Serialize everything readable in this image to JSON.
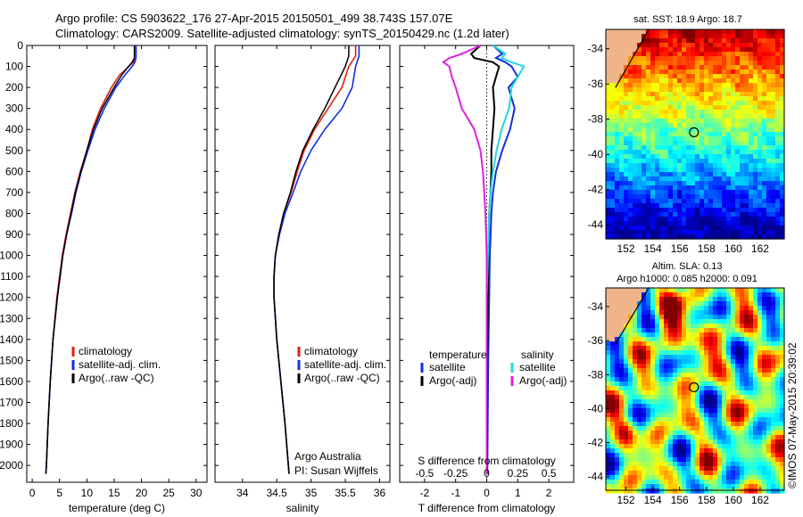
{
  "header": {
    "line1": "Argo profile: CS 5903622_176 27-Apr-2015 20150501_499 38.743S 157.07E",
    "line2": "Climatology: CARS2009. Satellite-adjusted climatology: synTS_20150429.nc (1.2d later)"
  },
  "colors": {
    "climatology": "#e02010",
    "satellite": "#1030e0",
    "argo": "#000000",
    "sal_satellite": "#20d8d8",
    "sal_argo": "#e020e0"
  },
  "chart_data": [
    {
      "type": "line",
      "id": "temperature",
      "xlabel": "temperature (deg C)",
      "ylabel": "",
      "xlim": [
        -1,
        32
      ],
      "ylim": [
        2080,
        0
      ],
      "xticks": [
        "0",
        "5",
        "10",
        "15",
        "20",
        "25",
        "30"
      ],
      "yticks": [
        "0",
        "100",
        "200",
        "300",
        "400",
        "500",
        "600",
        "700",
        "800",
        "900",
        "1000",
        "1100",
        "1200",
        "1300",
        "1400",
        "1500",
        "1600",
        "1700",
        "1800",
        "1900",
        "2000"
      ],
      "legend": [
        "climatology",
        "satellite-adj. clim.",
        "Argo(..raw -QC)"
      ],
      "series": [
        {
          "name": "climatology",
          "depth": [
            0,
            60,
            80,
            100,
            140,
            200,
            300,
            400,
            500,
            600,
            700,
            800,
            900,
            1000,
            1200,
            1400,
            1600,
            1800,
            2000,
            2040
          ],
          "values": [
            19,
            19,
            18.5,
            17.7,
            16,
            14.5,
            12.5,
            11,
            10,
            8.8,
            7.8,
            7,
            6.2,
            5.5,
            4.5,
            3.8,
            3.3,
            2.9,
            2.6,
            2.5
          ]
        },
        {
          "name": "satellite-adj. clim.",
          "depth": [
            0,
            60,
            80,
            100,
            140,
            200,
            300,
            400,
            500,
            600,
            700,
            800,
            900,
            1000,
            1200,
            1400,
            1600,
            1800,
            2000,
            2040
          ],
          "values": [
            19,
            19,
            18.8,
            18.3,
            17,
            15.3,
            13.2,
            11.5,
            10.2,
            9,
            8,
            7.2,
            6.3,
            5.6,
            4.6,
            3.8,
            3.3,
            2.9,
            2.6,
            2.5
          ]
        },
        {
          "name": "Argo(..raw -QC)",
          "depth": [
            0,
            60,
            80,
            100,
            140,
            200,
            300,
            400,
            500,
            600,
            700,
            800,
            900,
            1000,
            1200,
            1400,
            1600,
            1800,
            2000,
            2040
          ],
          "values": [
            18.7,
            18.7,
            18.3,
            17.6,
            16.4,
            15,
            12.8,
            11.2,
            10,
            8.9,
            7.9,
            7.1,
            6.3,
            5.6,
            4.6,
            3.8,
            3.3,
            2.9,
            2.6,
            2.5
          ]
        }
      ]
    },
    {
      "type": "line",
      "id": "salinity",
      "xlabel": "salinity",
      "ylabel": "",
      "xlim": [
        33.6,
        36.15
      ],
      "ylim": [
        2080,
        0
      ],
      "xticks": [
        "34",
        "34.5",
        "35",
        "35.5",
        "36"
      ],
      "legend": [
        "climatology",
        "satellite-adj. clim.",
        "Argo(..raw -QC)"
      ],
      "annotation": [
        "Argo Australia",
        "PI: Susan Wijffels"
      ],
      "series": [
        {
          "name": "climatology",
          "depth": [
            0,
            50,
            100,
            200,
            300,
            400,
            500,
            600,
            700,
            800,
            900,
            1000,
            1100,
            1200,
            1400,
            1600,
            1800,
            2000,
            2040
          ],
          "values": [
            35.65,
            35.65,
            35.55,
            35.45,
            35.25,
            35.05,
            34.9,
            34.8,
            34.71,
            34.6,
            34.53,
            34.48,
            34.46,
            34.46,
            34.5,
            34.56,
            34.62,
            34.67,
            34.68
          ]
        },
        {
          "name": "satellite-adj. clim.",
          "depth": [
            0,
            50,
            100,
            200,
            300,
            400,
            500,
            600,
            700,
            800,
            900,
            1000,
            1100,
            1200,
            1400,
            1600,
            1800,
            2000,
            2040
          ],
          "values": [
            35.7,
            35.7,
            35.65,
            35.6,
            35.45,
            35.2,
            35,
            34.85,
            34.74,
            34.62,
            34.54,
            34.48,
            34.46,
            34.46,
            34.5,
            34.56,
            34.62,
            34.67,
            34.68
          ]
        },
        {
          "name": "Argo(..raw -QC)",
          "depth": [
            0,
            50,
            100,
            200,
            300,
            400,
            500,
            600,
            700,
            800,
            900,
            1000,
            1100,
            1200,
            1400,
            1600,
            1800,
            2000,
            2040
          ],
          "values": [
            35.55,
            35.55,
            35.5,
            35.35,
            35.2,
            35.03,
            34.88,
            34.78,
            34.7,
            34.6,
            34.53,
            34.48,
            34.46,
            34.46,
            34.5,
            34.56,
            34.62,
            34.67,
            34.68
          ]
        }
      ]
    },
    {
      "type": "line",
      "id": "difference",
      "xlabel": "T difference from climatology",
      "xlabel_top": "S difference from climatology",
      "xlim": [
        -2.8,
        2.8
      ],
      "ylim": [
        2080,
        0
      ],
      "xticks": [
        "-2",
        "-1",
        "0",
        "1",
        "2"
      ],
      "xticks_sal": [
        "-0.5",
        "-0.25",
        "0",
        "0.25",
        "0.5"
      ],
      "legend_temp_title": "temperature",
      "legend_sal_title": "salinity",
      "legend": [
        "satellite",
        "Argo(-adj)",
        "satellite",
        "Argo(-adj)"
      ],
      "series": [
        {
          "name": "T satellite",
          "depth": [
            0,
            40,
            60,
            80,
            100,
            150,
            200,
            300,
            400,
            500,
            600,
            700,
            800,
            1000,
            1200,
            1500,
            2040
          ],
          "values": [
            0.2,
            0.5,
            0.3,
            0.6,
            0.8,
            1.0,
            0.7,
            0.9,
            0.75,
            0.5,
            0.3,
            0.2,
            0.15,
            0.1,
            0.08,
            0.05,
            0.02
          ]
        },
        {
          "name": "T Argo(-adj)",
          "depth": [
            0,
            40,
            60,
            80,
            100,
            150,
            200,
            300,
            400,
            500,
            600,
            700,
            800,
            1000,
            1200,
            1500,
            2040
          ],
          "values": [
            -0.2,
            -0.5,
            -0.4,
            0.2,
            0.4,
            0.3,
            0.2,
            0.25,
            0.2,
            0.15,
            0.15,
            0.12,
            0.08,
            0.05,
            0.04,
            0.02,
            0.01
          ]
        },
        {
          "name": "S satellite",
          "depth": [
            0,
            40,
            60,
            80,
            100,
            150,
            200,
            300,
            400,
            500,
            600,
            700,
            800,
            1000,
            1200,
            1500,
            2040
          ],
          "values": [
            0.05,
            0.15,
            0.12,
            0.2,
            0.3,
            0.25,
            0.2,
            0.18,
            0.12,
            0.08,
            0.05,
            0.03,
            0.02,
            0.01,
            0.0,
            0.0,
            0.0
          ]
        },
        {
          "name": "S Argo(-adj)",
          "depth": [
            0,
            40,
            60,
            80,
            100,
            150,
            200,
            300,
            400,
            500,
            600,
            700,
            800,
            1000,
            1200,
            1500,
            2040
          ],
          "values": [
            -0.05,
            -0.2,
            -0.3,
            -0.35,
            -0.3,
            -0.28,
            -0.25,
            -0.2,
            -0.1,
            -0.05,
            -0.03,
            -0.02,
            -0.01,
            0.0,
            0.0,
            0.0,
            0.0
          ]
        }
      ]
    },
    {
      "type": "heatmap",
      "id": "sst_map",
      "title": "sat. SST: 18.9 Argo: 18.7",
      "xlim": [
        150.5,
        163.8
      ],
      "ylim": [
        -44.8,
        -32.9
      ],
      "xticks": [
        "152",
        "154",
        "156",
        "158",
        "160",
        "162"
      ],
      "yticks": [
        "-34",
        "-36",
        "-38",
        "-40",
        "-42",
        "-44"
      ],
      "marker": [
        157.07,
        -38.743
      ]
    },
    {
      "type": "heatmap",
      "id": "sla_map",
      "title_line1": "Altim. SLA: 0.13",
      "title_line2": "Argo h1000: 0.085 h2000: 0.091",
      "xlim": [
        150.5,
        163.8
      ],
      "ylim": [
        -44.8,
        -32.9
      ],
      "xticks": [
        "152",
        "154",
        "156",
        "158",
        "160",
        "162"
      ],
      "yticks": [
        "-34",
        "-36",
        "-38",
        "-40",
        "-42",
        "-44"
      ],
      "marker": [
        157.07,
        -38.743
      ]
    }
  ],
  "footer": {
    "credit": "©IMOS 07-May-2015 20:39:02"
  }
}
